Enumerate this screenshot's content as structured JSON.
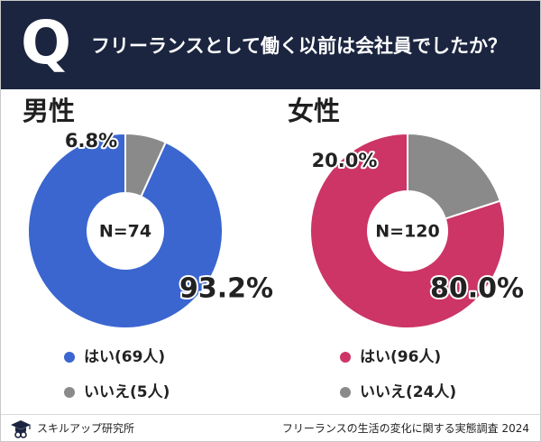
{
  "header": {
    "q_letter": "Q",
    "question": "フリーランスとして働く以前は会社員でしたか？"
  },
  "colors": {
    "header_bg": "#1b2540",
    "male_yes": "#3b66d0",
    "female_yes": "#cc3566",
    "no": "#8a8a8a"
  },
  "chart_data": [
    {
      "type": "pie",
      "title": "男性",
      "center_label": "N=74",
      "categories": [
        "はい",
        "いいえ"
      ],
      "values": [
        93.2,
        6.8
      ],
      "counts": [
        69,
        5
      ],
      "data_labels": [
        "93.2%",
        "6.8%"
      ],
      "legend": [
        "はい(69人)",
        "いいえ(5人)"
      ],
      "colors": [
        "#3b66d0",
        "#8a8a8a"
      ]
    },
    {
      "type": "pie",
      "title": "女性",
      "center_label": "N=120",
      "categories": [
        "はい",
        "いいえ"
      ],
      "values": [
        80.0,
        20.0
      ],
      "counts": [
        96,
        24
      ],
      "data_labels": [
        "80.0%",
        "20.0%"
      ],
      "legend": [
        "はい(96人)",
        "いいえ(24人)"
      ],
      "colors": [
        "#cc3566",
        "#8a8a8a"
      ]
    }
  ],
  "footer": {
    "brand": "スキルアップ研究所",
    "source": "フリーランスの生活の変化に関する実態調査 2024"
  }
}
